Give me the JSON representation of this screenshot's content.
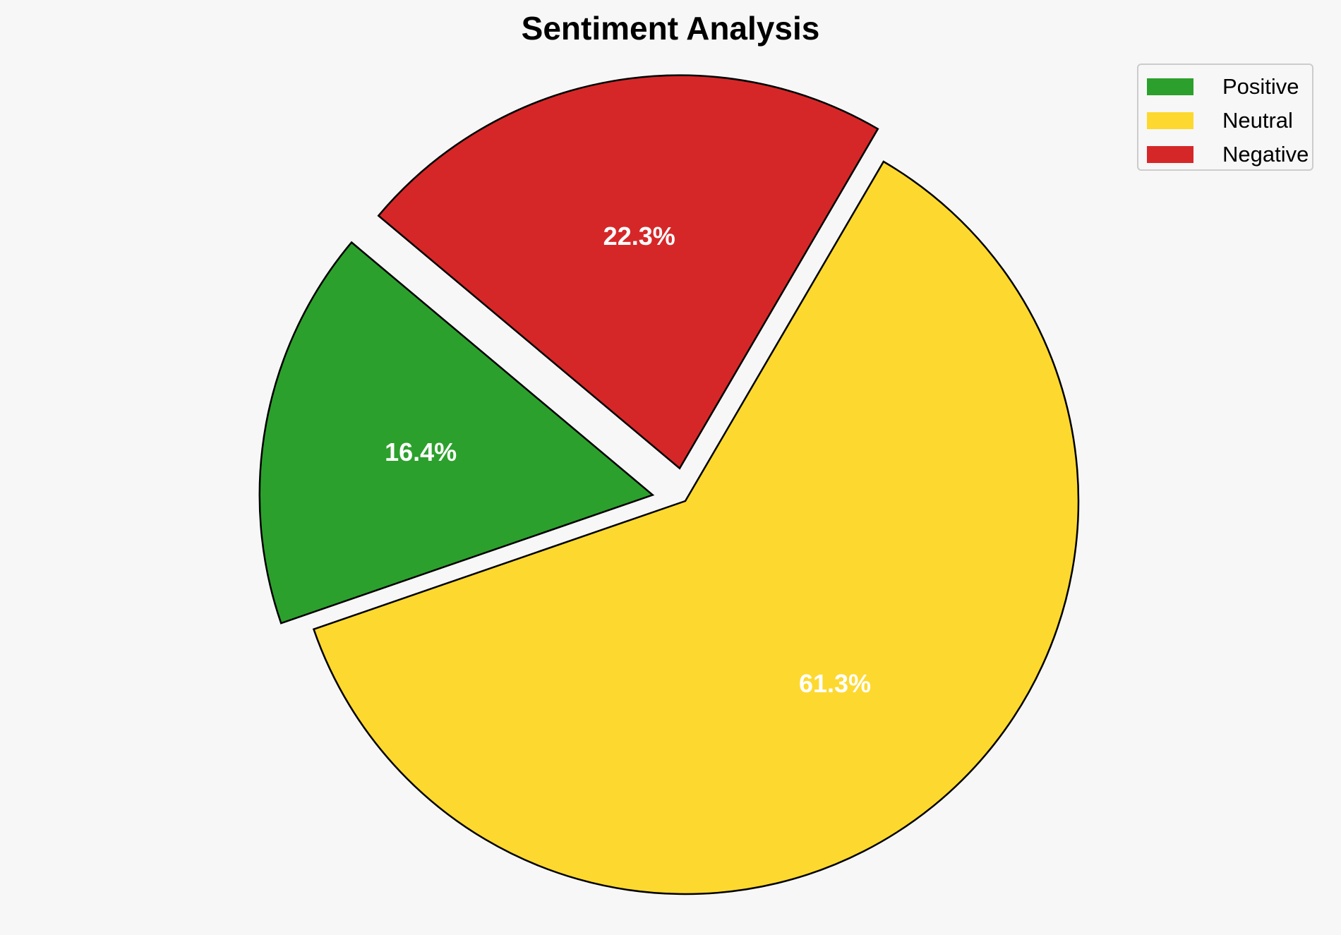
{
  "chart_data": {
    "type": "pie",
    "title": "Sentiment Analysis",
    "categories": [
      "Positive",
      "Neutral",
      "Negative"
    ],
    "values": [
      16.4,
      61.3,
      22.3
    ],
    "labels": [
      "16.4%",
      "61.3%",
      "22.3%"
    ],
    "colors": [
      "#2ca02c",
      "#fdd92f",
      "#d62728"
    ],
    "edge_color": "#000000",
    "label_color": "#ffffff",
    "background": "#f7f7f7",
    "exploded": [
      "Positive",
      "Negative"
    ],
    "start_angle_deg": 140,
    "direction": "counterclockwise",
    "legend": {
      "placement": "top-right",
      "items": [
        "Positive",
        "Neutral",
        "Negative"
      ]
    }
  }
}
